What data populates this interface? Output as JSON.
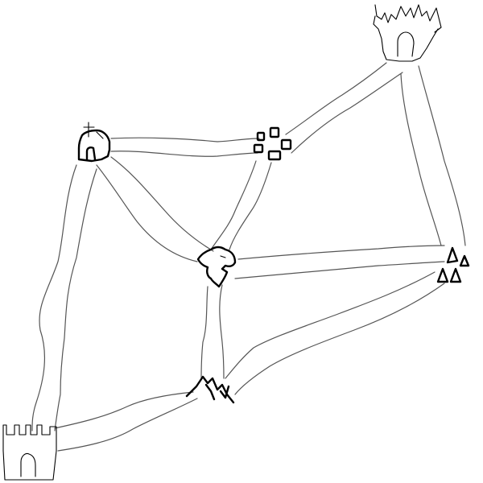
{
  "map": {
    "style": "hand-drawn",
    "background_color": "#ffffff",
    "road_color": "#555555",
    "icon_color": "#000000",
    "locations": [
      {
        "id": "castle-top",
        "icon": "castle-tower-icon"
      },
      {
        "id": "church",
        "icon": "church-icon"
      },
      {
        "id": "village",
        "icon": "village-houses-icon"
      },
      {
        "id": "center-creature",
        "icon": "monster-head-icon"
      },
      {
        "id": "forest",
        "icon": "pine-trees-icon"
      },
      {
        "id": "mountain",
        "icon": "mountain-icon"
      },
      {
        "id": "castle-start",
        "icon": "castle-gate-icon"
      }
    ],
    "roads": [
      [
        "church",
        "village"
      ],
      [
        "village",
        "castle-top"
      ],
      [
        "castle-top",
        "forest"
      ],
      [
        "church",
        "center-creature"
      ],
      [
        "village",
        "center-creature"
      ],
      [
        "center-creature",
        "forest"
      ],
      [
        "center-creature",
        "mountain"
      ],
      [
        "forest",
        "mountain"
      ],
      [
        "church",
        "castle-start"
      ],
      [
        "mountain",
        "castle-start"
      ]
    ]
  }
}
